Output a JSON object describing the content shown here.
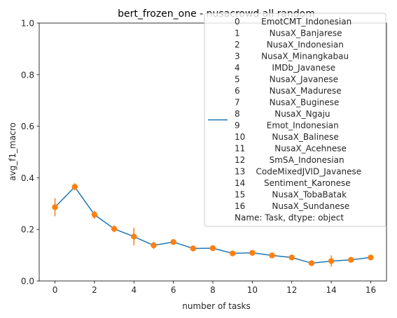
{
  "chart_data": {
    "type": "line",
    "title": "bert_frozen_one - nusacrowd all random",
    "xlabel": "number of tasks",
    "ylabel": "avg_f1_macro",
    "xlim": [
      -0.8,
      16.8
    ],
    "ylim": [
      0.0,
      1.0
    ],
    "xticks": [
      "0",
      "2",
      "4",
      "6",
      "8",
      "10",
      "12",
      "14",
      "16"
    ],
    "yticks": [
      "0.0",
      "0.2",
      "0.4",
      "0.6",
      "0.8",
      "1.0"
    ],
    "grid": false,
    "legend_position": "top-right",
    "series": [
      {
        "name": "0        EmotCMT_Indonesian\n1           NusaX_Banjarese\n2          NusaX_Indonesian\n3        NusaX_Minangkabau\n4            IMDb_Javanese\n5           NusaX_Javanese\n6           NusaX_Madurese\n7           NusaX_Buginese\n8             NusaX_Ngaju\n9          Emot_Indonesian\n10          NusaX_Balinese\n11           NusaX_Acehnese\n12         SmSA_Indonesian\n13    CodeMixedJVID_Javanese\n14       Sentiment_Karonese\n15          NusaX_TobaBatak\n16          NusaX_Sundanese\nName: Task, dtype: object",
        "color": "#1f77b4",
        "x": [
          0,
          1,
          2,
          3,
          4,
          5,
          6,
          7,
          8,
          9,
          10,
          11,
          12,
          13,
          14,
          15,
          16
        ],
        "values": [
          0.286,
          0.365,
          0.257,
          0.202,
          0.172,
          0.138,
          0.151,
          0.126,
          0.127,
          0.107,
          0.109,
          0.099,
          0.091,
          0.069,
          0.077,
          0.082,
          0.091
        ]
      }
    ],
    "points": {
      "color": "#ff7f0e",
      "x": [
        0,
        1,
        2,
        3,
        4,
        5,
        6,
        7,
        8,
        9,
        10,
        11,
        12,
        13,
        14,
        15,
        16
      ],
      "values": [
        0.286,
        0.365,
        0.257,
        0.202,
        0.172,
        0.138,
        0.151,
        0.126,
        0.127,
        0.107,
        0.109,
        0.099,
        0.091,
        0.069,
        0.077,
        0.082,
        0.091
      ],
      "error": [
        0.035,
        0.014,
        0.016,
        0.013,
        0.034,
        0.014,
        0.006,
        0.005,
        0.006,
        0.006,
        0.005,
        0.005,
        0.005,
        0.004,
        0.022,
        0.006,
        0.005
      ]
    }
  }
}
